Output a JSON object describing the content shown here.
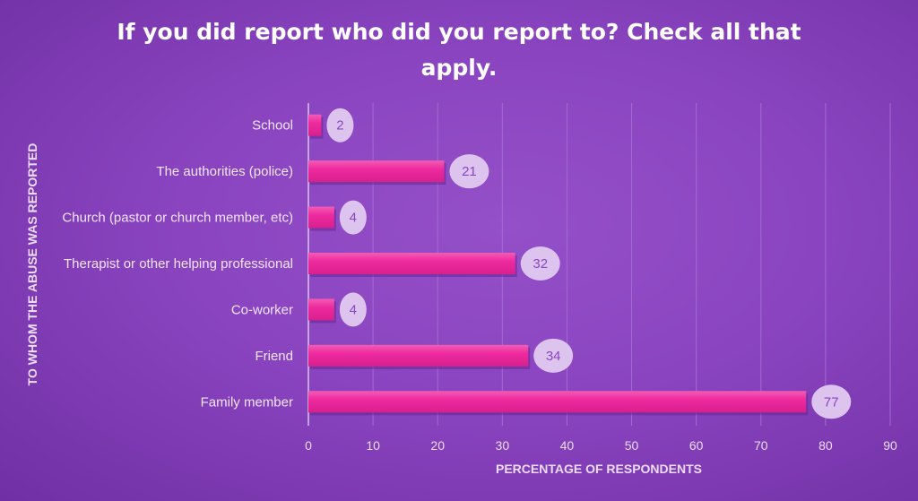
{
  "chart_data": {
    "type": "bar",
    "orientation": "horizontal",
    "title": "If you did report who did you report to? Check all that apply.",
    "title_lines": [
      "If you did report who did you report to? Check all that",
      "apply."
    ],
    "xlabel": "PERCENTAGE OF RESPONDENTS",
    "ylabel": "TO WHOM THE ABUSE WAS REPORTED",
    "categories": [
      "School",
      "The authorities (police)",
      "Church (pastor or church member, etc)",
      "Therapist or other helping professional",
      "Co-worker",
      "Friend",
      "Family member"
    ],
    "values": [
      2,
      21,
      4,
      32,
      4,
      34,
      77
    ],
    "xlim": [
      0,
      90
    ],
    "xticks": [
      0,
      10,
      20,
      30,
      40,
      50,
      60,
      70,
      80,
      90
    ],
    "grid": "vertical",
    "data_labels": true,
    "colors": {
      "bar": "#ee2a9e",
      "label_bubble": "#dcc4ee",
      "background": "#8a44c0"
    }
  }
}
